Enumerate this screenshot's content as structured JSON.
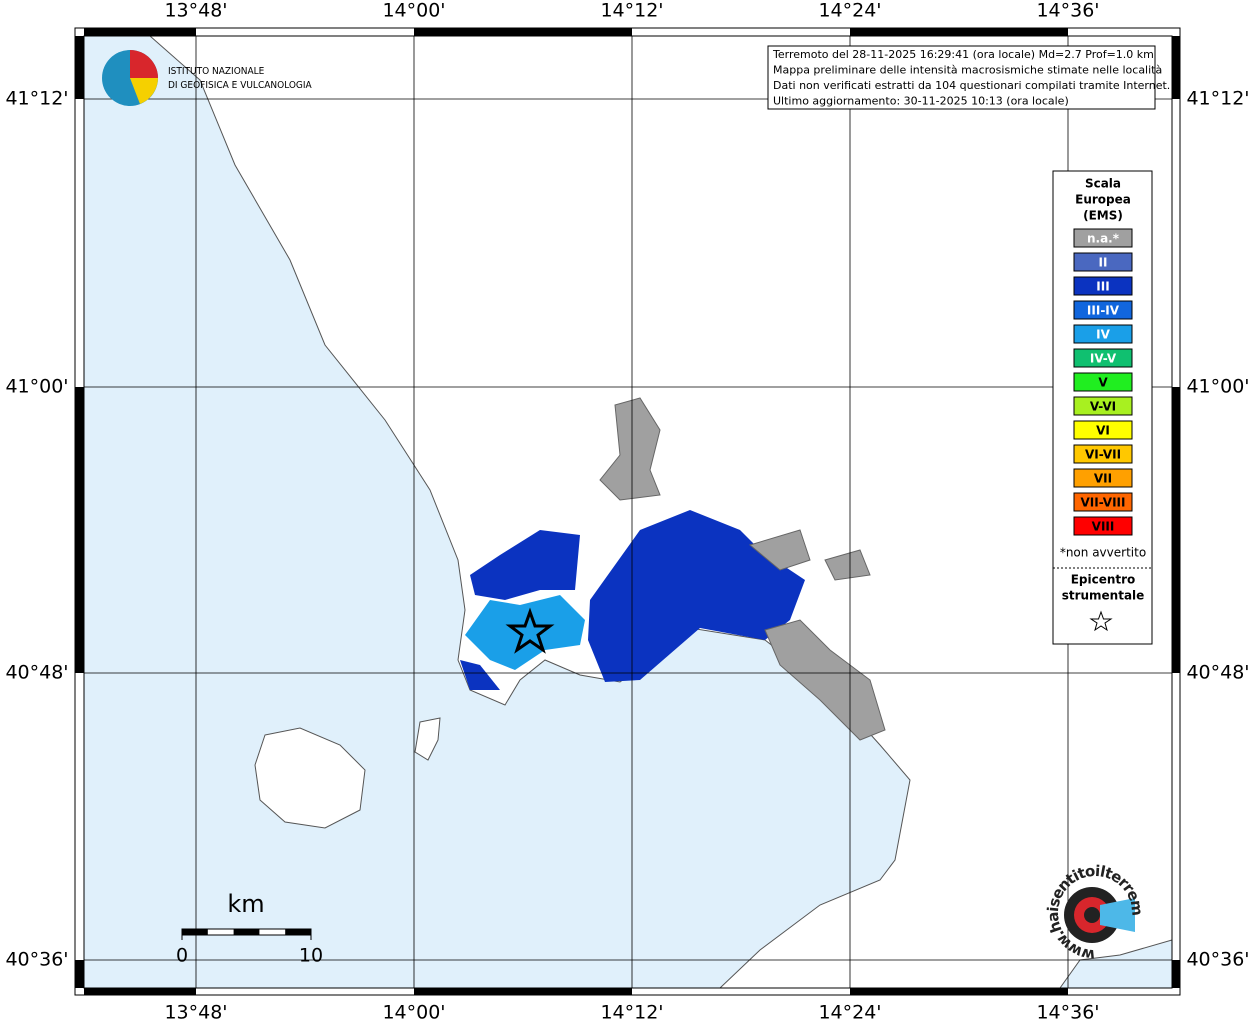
{
  "header": {
    "institute": [
      "ISTITUTO NAZIONALE",
      "DI GEOFISICA E VULCANOLOGIA"
    ]
  },
  "info": [
    "Terremoto del 28-11-2025 16:29:41 (ora locale) Md=2.7 Prof=1.0 km",
    "Mappa preliminare delle intensità macrosismiche stimate nelle località",
    "Dati non verificati estratti da 104 questionari compilati tramite Internet.",
    "Ultimo aggiornamento: 30-11-2025 10:13 (ora locale)"
  ],
  "axes": {
    "lon": [
      "13°48'",
      "14°00'",
      "14°12'",
      "14°24'",
      "14°36'"
    ],
    "lat": [
      "41°12'",
      "41°00'",
      "40°48'",
      "40°36'"
    ]
  },
  "legend": {
    "title": [
      "Scala",
      "Europea",
      "(EMS)"
    ],
    "items": [
      {
        "label": "n.a.*",
        "color": "#a0a0a0"
      },
      {
        "label": "II",
        "color": "#4a68c0"
      },
      {
        "label": "III",
        "color": "#0b33c0"
      },
      {
        "label": "III-IV",
        "color": "#1166dd"
      },
      {
        "label": "IV",
        "color": "#1a9fe8"
      },
      {
        "label": "IV-V",
        "color": "#10c070"
      },
      {
        "label": "V",
        "color": "#20ee20"
      },
      {
        "label": "V-VI",
        "color": "#a8f020"
      },
      {
        "label": "VI",
        "color": "#ffff00"
      },
      {
        "label": "VI-VII",
        "color": "#ffc800"
      },
      {
        "label": "VII",
        "color": "#ffa000"
      },
      {
        "label": "VII-VIII",
        "color": "#ff6600"
      },
      {
        "label": "VIII",
        "color": "#ff0000"
      }
    ],
    "note": "*non avvertito",
    "epicenter": [
      "Epicentro",
      "strumentale"
    ]
  },
  "scale": {
    "unit": "km",
    "ticks": [
      "0",
      "10"
    ]
  },
  "watermark": "www.haisentitoilterremoto.it"
}
